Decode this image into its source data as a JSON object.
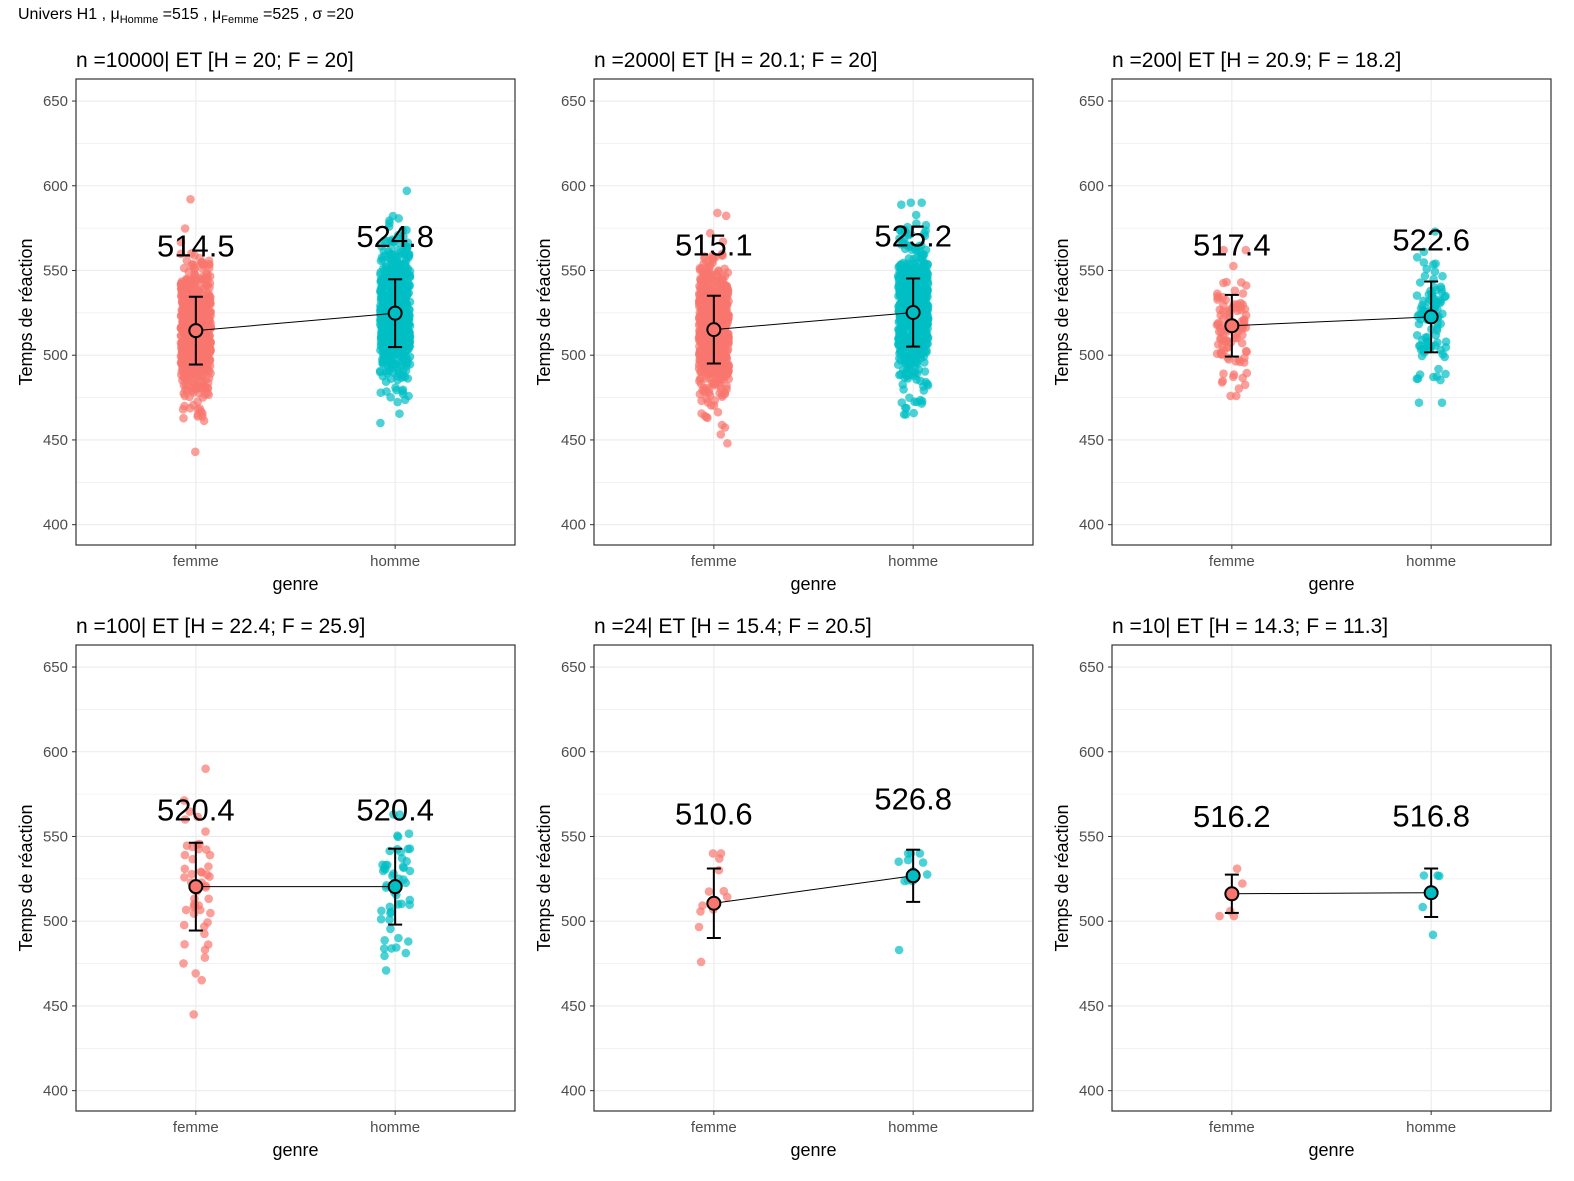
{
  "title": {
    "prefix": "Univers H1 , ",
    "mu": "μ",
    "homme_sub": "Homme",
    "homme_value": " =515 , ",
    "femme_sub": "Femme",
    "femme_value": " =525 , ",
    "sigma": "σ =20"
  },
  "colors": {
    "femme": "#F8766D",
    "homme": "#00BFC4",
    "grid": "#EBEBEB",
    "panel_border": "#333333",
    "axis_text": "#4D4D4D"
  },
  "chart_data": [
    {
      "type": "scatter",
      "title": "n =10000| ET [H = 20; F = 20]",
      "xlabel": "genre",
      "ylabel": "Temps de réaction",
      "categories": [
        "femme",
        "homme"
      ],
      "yticks": [
        400,
        450,
        500,
        550,
        600,
        650
      ],
      "ylim": [
        388,
        663
      ],
      "grid": true,
      "means": [
        514.5,
        524.8
      ],
      "mean_labels": [
        "514.5",
        "524.8"
      ],
      "errorbars": [
        [
          494.5,
          534.5
        ],
        [
          504.8,
          544.8
        ]
      ],
      "n": 10000,
      "sd": [
        20,
        20
      ],
      "range": [
        [
          443,
          592
        ],
        [
          460,
          597
        ]
      ]
    },
    {
      "type": "scatter",
      "title": "n =2000| ET [H = 20.1; F = 20]",
      "xlabel": "genre",
      "ylabel": "Temps de réaction",
      "categories": [
        "femme",
        "homme"
      ],
      "yticks": [
        400,
        450,
        500,
        550,
        600,
        650
      ],
      "ylim": [
        388,
        663
      ],
      "grid": true,
      "means": [
        515.1,
        525.2
      ],
      "mean_labels": [
        "515.1",
        "525.2"
      ],
      "errorbars": [
        [
          495.1,
          535.1
        ],
        [
          505.1,
          545.3
        ]
      ],
      "n": 2000,
      "sd": [
        20,
        20.1
      ],
      "range": [
        [
          448,
          584
        ],
        [
          465,
          590
        ]
      ]
    },
    {
      "type": "scatter",
      "title": "n =200| ET [H = 20.9; F = 18.2]",
      "xlabel": "genre",
      "ylabel": "Temps de réaction",
      "categories": [
        "femme",
        "homme"
      ],
      "yticks": [
        400,
        450,
        500,
        550,
        600,
        650
      ],
      "ylim": [
        388,
        663
      ],
      "grid": true,
      "means": [
        517.4,
        522.6
      ],
      "mean_labels": [
        "517.4",
        "522.6"
      ],
      "errorbars": [
        [
          499.2,
          535.6
        ],
        [
          501.7,
          543.5
        ]
      ],
      "n": 200,
      "sd": [
        18.2,
        20.9
      ],
      "range": [
        [
          476,
          562
        ],
        [
          472,
          573
        ]
      ]
    },
    {
      "type": "scatter",
      "title": "n =100| ET [H = 22.4; F = 25.9]",
      "xlabel": "genre",
      "ylabel": "Temps de réaction",
      "categories": [
        "femme",
        "homme"
      ],
      "yticks": [
        400,
        450,
        500,
        550,
        600,
        650
      ],
      "ylim": [
        388,
        663
      ],
      "grid": true,
      "means": [
        520.4,
        520.4
      ],
      "mean_labels": [
        "520.4",
        "520.4"
      ],
      "errorbars": [
        [
          494.5,
          546.3
        ],
        [
          498.0,
          542.8
        ]
      ],
      "n": 100,
      "sd": [
        25.9,
        22.4
      ],
      "range": [
        [
          445,
          590
        ],
        [
          471,
          563
        ]
      ]
    },
    {
      "type": "scatter",
      "title": "n =24| ET [H = 15.4; F = 20.5]",
      "xlabel": "genre",
      "ylabel": "Temps de réaction",
      "categories": [
        "femme",
        "homme"
      ],
      "yticks": [
        400,
        450,
        500,
        550,
        600,
        650
      ],
      "ylim": [
        388,
        663
      ],
      "grid": true,
      "means": [
        510.6,
        526.8
      ],
      "mean_labels": [
        "510.6",
        "526.8"
      ],
      "errorbars": [
        [
          490.1,
          531.1
        ],
        [
          511.4,
          542.2
        ]
      ],
      "n": 24,
      "sd": [
        20.5,
        15.4
      ],
      "range": [
        [
          476,
          540
        ],
        [
          483,
          540
        ]
      ]
    },
    {
      "type": "scatter",
      "title": "n =10| ET [H = 14.3; F = 11.3]",
      "xlabel": "genre",
      "ylabel": "Temps de réaction",
      "categories": [
        "femme",
        "homme"
      ],
      "yticks": [
        400,
        450,
        500,
        550,
        600,
        650
      ],
      "ylim": [
        388,
        663
      ],
      "grid": true,
      "means": [
        516.2,
        516.8
      ],
      "mean_labels": [
        "516.2",
        "516.8"
      ],
      "errorbars": [
        [
          504.9,
          527.5
        ],
        [
          502.5,
          531.1
        ]
      ],
      "n": 10,
      "sd": [
        11.3,
        14.3
      ],
      "range": [
        [
          503,
          531
        ],
        [
          492,
          527
        ]
      ]
    }
  ]
}
